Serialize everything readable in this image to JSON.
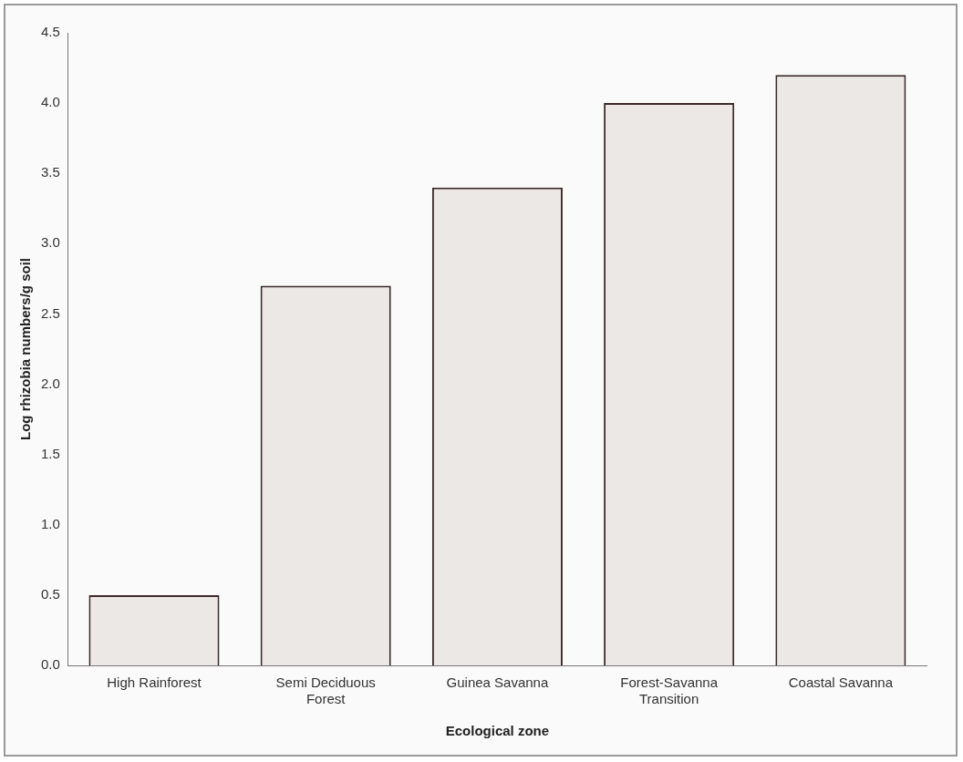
{
  "chart_data": {
    "type": "bar",
    "xlabel": "Ecological zone",
    "ylabel": "Log rhizobia numbers/g soil",
    "categories": [
      "High Rainforest",
      "Semi Deciduous Forest",
      "Guinea Savanna",
      "Forest-Savanna Transition",
      "Coastal Savanna"
    ],
    "values": [
      0.5,
      2.7,
      3.4,
      4.0,
      4.2
    ],
    "color": "#ebe8e6",
    "ylim": [
      0,
      4.5
    ],
    "yticks": [
      {
        "value": 0,
        "label": "0.0"
      },
      {
        "value": 0.5,
        "label": "0.5"
      },
      {
        "value": 1,
        "label": "1.0"
      },
      {
        "value": 1.5,
        "label": "1.5"
      },
      {
        "value": 2,
        "label": "2.0"
      },
      {
        "value": 2.5,
        "label": "2.5"
      },
      {
        "value": 3,
        "label": "3.0"
      },
      {
        "value": 3.5,
        "label": "3.5"
      },
      {
        "value": 4,
        "label": "4.0"
      },
      {
        "value": 4.5,
        "label": "4.5"
      }
    ],
    "grid": false,
    "legend": false
  }
}
